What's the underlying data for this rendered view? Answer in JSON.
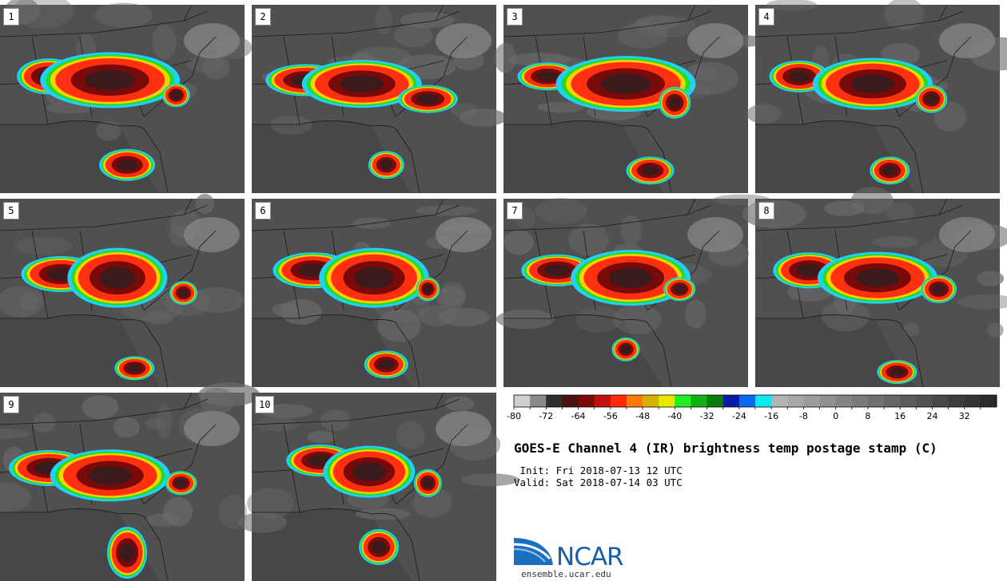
{
  "title": "GOES-E Channel 4 (IR) brightness temp postage stamp (C)",
  "init": " Init: Fri 2018-07-13 12 UTC",
  "valid": "Valid: Sat 2018-07-14 03 UTC",
  "logo_text": "NCAR",
  "url": "ensemble.ucar.edu",
  "colorbar": {
    "unit": "C",
    "min": -80,
    "max": 40,
    "step": 4,
    "tick_labels": [
      "-80",
      "-72",
      "-64",
      "-56",
      "-48",
      "-40",
      "-32",
      "-24",
      "-16",
      "-8",
      "0",
      "8",
      "16",
      "24",
      "32"
    ],
    "colors": [
      "#cfcfcf",
      "#8a8a8a",
      "#2e2e2e",
      "#4a1212",
      "#7a0a0a",
      "#c01010",
      "#ff2a0a",
      "#ff7a0a",
      "#d8b000",
      "#e8e800",
      "#22ee22",
      "#10b010",
      "#0a7a0a",
      "#0a1aa8",
      "#0a6aee",
      "#10e8f0",
      "#b4b4b4",
      "#a8a8a8",
      "#9c9c9c",
      "#909090",
      "#858585",
      "#7a7a7a",
      "#707070",
      "#666666",
      "#5c5c5c",
      "#525252",
      "#484848",
      "#3e3e3e",
      "#343434",
      "#2a2a2a"
    ]
  },
  "panels": [
    {
      "label": "1",
      "storms": [
        [
          0.2,
          0.38,
          32,
          18
        ],
        [
          0.45,
          0.4,
          70,
          28
        ],
        [
          0.72,
          0.48,
          14,
          12
        ],
        [
          0.52,
          0.85,
          28,
          16
        ]
      ]
    },
    {
      "label": "2",
      "storms": [
        [
          0.22,
          0.4,
          40,
          16
        ],
        [
          0.45,
          0.42,
          60,
          24
        ],
        [
          0.72,
          0.5,
          30,
          14
        ],
        [
          0.55,
          0.85,
          18,
          14
        ]
      ]
    },
    {
      "label": "3",
      "storms": [
        [
          0.18,
          0.38,
          30,
          14
        ],
        [
          0.5,
          0.42,
          70,
          28
        ],
        [
          0.7,
          0.52,
          16,
          16
        ],
        [
          0.6,
          0.88,
          24,
          14
        ]
      ]
    },
    {
      "label": "4",
      "storms": [
        [
          0.18,
          0.38,
          30,
          16
        ],
        [
          0.48,
          0.42,
          60,
          26
        ],
        [
          0.72,
          0.5,
          16,
          14
        ],
        [
          0.55,
          0.88,
          20,
          14
        ]
      ]
    },
    {
      "label": "5",
      "storms": [
        [
          0.25,
          0.4,
          40,
          18
        ],
        [
          0.48,
          0.42,
          50,
          30
        ],
        [
          0.75,
          0.5,
          14,
          12
        ],
        [
          0.55,
          0.9,
          20,
          12
        ]
      ]
    },
    {
      "label": "6",
      "storms": [
        [
          0.25,
          0.38,
          40,
          18
        ],
        [
          0.5,
          0.42,
          55,
          30
        ],
        [
          0.72,
          0.48,
          12,
          12
        ],
        [
          0.55,
          0.88,
          22,
          14
        ]
      ]
    },
    {
      "label": "7",
      "storms": [
        [
          0.22,
          0.38,
          36,
          16
        ],
        [
          0.52,
          0.42,
          60,
          28
        ],
        [
          0.72,
          0.48,
          16,
          12
        ],
        [
          0.5,
          0.8,
          14,
          12
        ]
      ]
    },
    {
      "label": "8",
      "storms": [
        [
          0.22,
          0.38,
          36,
          18
        ],
        [
          0.5,
          0.42,
          60,
          26
        ],
        [
          0.75,
          0.48,
          18,
          14
        ],
        [
          0.58,
          0.92,
          20,
          12
        ]
      ]
    },
    {
      "label": "9",
      "storms": [
        [
          0.2,
          0.4,
          40,
          18
        ],
        [
          0.45,
          0.44,
          60,
          26
        ],
        [
          0.74,
          0.48,
          16,
          12
        ],
        [
          0.52,
          0.85,
          20,
          26
        ]
      ]
    },
    {
      "label": "10",
      "storms": [
        [
          0.28,
          0.36,
          34,
          16
        ],
        [
          0.48,
          0.42,
          46,
          26
        ],
        [
          0.72,
          0.48,
          14,
          14
        ],
        [
          0.52,
          0.82,
          20,
          18
        ]
      ]
    }
  ]
}
